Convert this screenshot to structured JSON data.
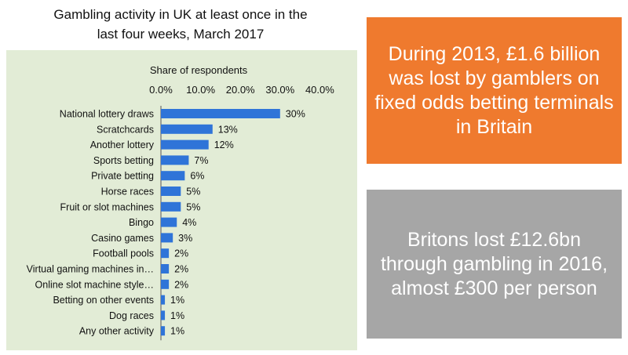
{
  "title_line1": "Gambling activity in UK at least once in the",
  "title_line2": "last four weeks, March 2017",
  "colors": {
    "panel_bg": "#e2ecd6",
    "bar": "#2f74d8",
    "orange_box": "#ef7a2e",
    "grey_box": "#a6a6a6"
  },
  "chart_data": {
    "type": "bar",
    "orientation": "horizontal",
    "title": "Gambling activity in UK at least once in the last four weeks, March 2017",
    "xlabel": "Share of respondents",
    "xlim": [
      0,
      40
    ],
    "ticks": [
      "0.0%",
      "10.0%",
      "20.0%",
      "30.0%",
      "40.0%"
    ],
    "categories": [
      "National lottery draws",
      "Scratchcards",
      "Another lottery",
      "Sports betting",
      "Private betting",
      "Horse races",
      "Fruit or slot machines",
      "Bingo",
      "Casino games",
      "Football pools",
      "Virtual gaming machines in…",
      "Online slot machine style…",
      "Betting on other events",
      "Dog races",
      "Any other activity"
    ],
    "values": [
      30,
      13,
      12,
      7,
      6,
      5,
      5,
      4,
      3,
      2,
      2,
      2,
      1,
      1,
      1
    ],
    "labels": [
      "30%",
      "13%",
      "12%",
      "7%",
      "6%",
      "5%",
      "5%",
      "4%",
      "3%",
      "2%",
      "2%",
      "2%",
      "1%",
      "1%",
      "1%"
    ]
  },
  "callout_orange": "During 2013, £1.6 billion was lost by gamblers on fixed odds betting terminals in Britain",
  "callout_grey": "Britons lost £12.6bn through gambling in 2016, almost £300 per person"
}
